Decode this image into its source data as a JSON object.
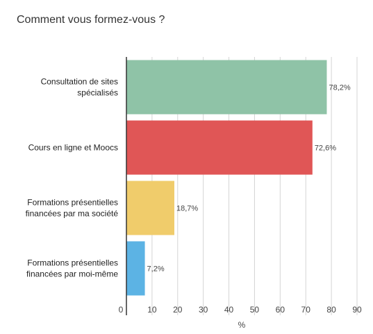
{
  "chart_data": {
    "type": "bar",
    "orientation": "horizontal",
    "title": "Comment vous formez-vous ?",
    "xlabel": "%",
    "ylabel": "",
    "xlim": [
      0,
      90
    ],
    "xticks": [
      0,
      10,
      20,
      30,
      40,
      50,
      60,
      70,
      80,
      90
    ],
    "grid": true,
    "categories": [
      [
        "Consultation de sites",
        "spécialisés"
      ],
      [
        "Cours en ligne et Moocs"
      ],
      [
        "Formations présentielles",
        "financées par ma société"
      ],
      [
        "Formations présentielles",
        "financées par moi-même"
      ]
    ],
    "values": [
      78.2,
      72.6,
      18.7,
      7.2
    ],
    "value_labels": [
      "78,2%",
      "72,6%",
      "18,7%",
      "7,2%"
    ],
    "colors": [
      "#8fc3a7",
      "#e05656",
      "#f0cc6b",
      "#5cb3e4"
    ]
  }
}
